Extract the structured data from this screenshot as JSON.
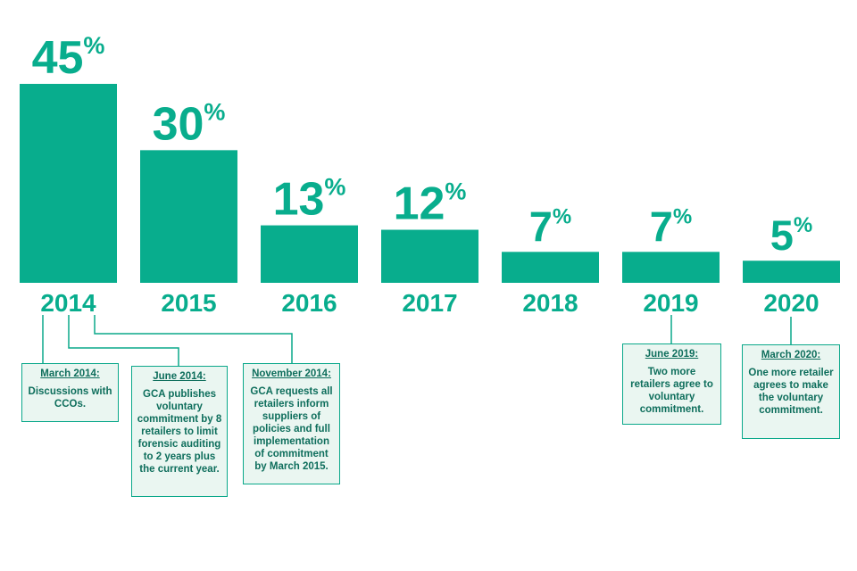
{
  "chart_data": {
    "type": "bar",
    "categories": [
      "2014",
      "2015",
      "2016",
      "2017",
      "2018",
      "2019",
      "2020"
    ],
    "values": [
      45,
      30,
      13,
      12,
      7,
      7,
      5
    ],
    "value_suffix": "%",
    "bar_color": "#08ad8d",
    "ylim": [
      0,
      50
    ],
    "grid": false,
    "legend": "none"
  },
  "annotations": [
    {
      "id": "march-2014",
      "title": "March 2014:",
      "body": "Discussions with CCOs."
    },
    {
      "id": "june-2014",
      "title": "June 2014:",
      "body": "GCA publishes voluntary commitment by 8 retailers to limit forensic auditing to 2 years plus the current year."
    },
    {
      "id": "november-2014",
      "title": "November 2014:",
      "body": "GCA requests all retailers inform suppliers of policies and full implementation of commitment by March 2015."
    },
    {
      "id": "june-2019",
      "title": "June 2019:",
      "body": "Two more retailers agree to voluntary commitment."
    },
    {
      "id": "march-2020",
      "title": "March 2020:",
      "body": "One more retailer agrees to make the voluntary commitment."
    }
  ]
}
